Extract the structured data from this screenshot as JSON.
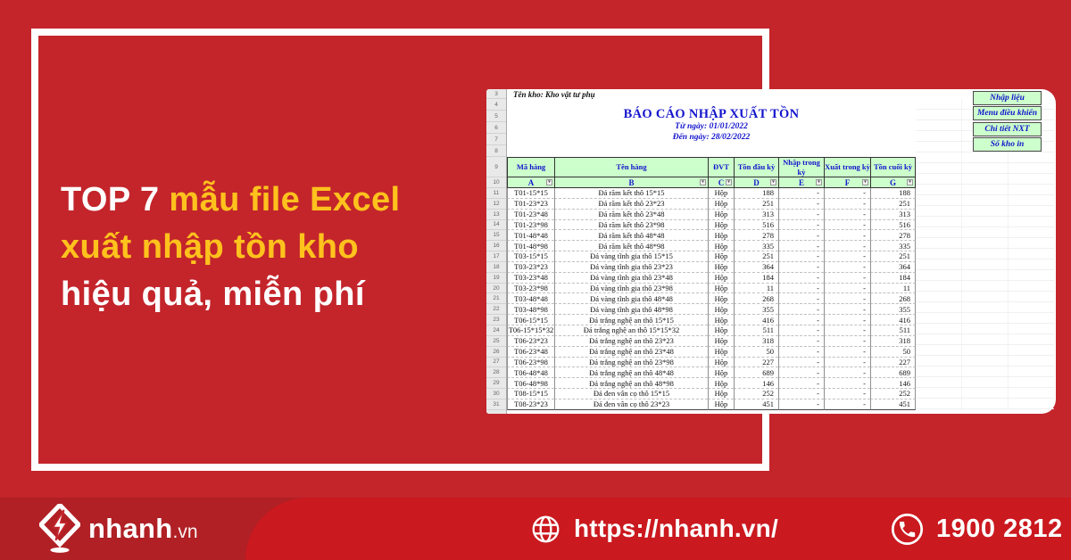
{
  "colors": {
    "brand_red": "#C3252B",
    "footer_red": "#CA191F",
    "footer_red_dark": "#B02025",
    "headline_yellow": "#FFC21D",
    "sheet_green": "#CCFFCC",
    "sheet_blue": "#1515CD"
  },
  "headline": {
    "line1_white": "TOP 7 ",
    "line1_yellow": "mẫu file Excel",
    "line2_yellow": "xuất nhập tồn kho",
    "line3_white": "hiệu quả, miễn phí"
  },
  "spreadsheet": {
    "store_label": "Tên kho: Kho vật tư phụ",
    "title": "BÁO CÁO NHẬP XUẤT TỒN",
    "date_from": "Từ ngày: 01/01/2022",
    "date_to": "Đến ngày: 28/02/2022",
    "buttons": [
      "Nhập liệu",
      "Menu điều khiển",
      "Chi tiết NXT",
      "Sổ kho in"
    ],
    "filter_icon": "▾",
    "row_numbers": [
      3,
      4,
      5,
      6,
      7,
      8,
      9,
      10,
      11,
      12,
      13,
      14,
      15,
      16,
      17,
      18,
      19,
      20,
      21,
      22,
      23,
      24,
      25,
      26,
      27,
      28,
      29,
      30,
      31
    ],
    "columns": [
      {
        "letter": "A",
        "header": "Mã hàng"
      },
      {
        "letter": "B",
        "header": "Tên hàng"
      },
      {
        "letter": "C",
        "header": "ĐVT"
      },
      {
        "letter": "D",
        "header": "Tồn đầu kỳ"
      },
      {
        "letter": "E",
        "header": "Nhập trong kỳ"
      },
      {
        "letter": "F",
        "header": "Xuất trong kỳ"
      },
      {
        "letter": "G",
        "header": "Tồn cuối kỳ"
      }
    ],
    "rows": [
      {
        "num": 11,
        "code": "T01-15*15",
        "name": "Đá răm kết thô 15*15",
        "unit": "Hộp",
        "open": "188",
        "in": "-",
        "out": "-",
        "close": "188"
      },
      {
        "num": 12,
        "code": "T01-23*23",
        "name": "Đá răm kết thô 23*23",
        "unit": "Hộp",
        "open": "251",
        "in": "-",
        "out": "-",
        "close": "251"
      },
      {
        "num": 13,
        "code": "T01-23*48",
        "name": "Đá răm kết thô 23*48",
        "unit": "Hộp",
        "open": "313",
        "in": "-",
        "out": "-",
        "close": "313"
      },
      {
        "num": 14,
        "code": "T01-23*98",
        "name": "Đá răm kết thô 23*98",
        "unit": "Hộp",
        "open": "516",
        "in": "-",
        "out": "-",
        "close": "516"
      },
      {
        "num": 15,
        "code": "T01-48*48",
        "name": "Đá răm kết thô 48*48",
        "unit": "Hộp",
        "open": "278",
        "in": "-",
        "out": "-",
        "close": "278"
      },
      {
        "num": 16,
        "code": "T01-48*98",
        "name": "Đá răm kết thô 48*98",
        "unit": "Hộp",
        "open": "335",
        "in": "-",
        "out": "-",
        "close": "335"
      },
      {
        "num": 17,
        "code": "T03-15*15",
        "name": "Đá vàng tĩnh gia thô 15*15",
        "unit": "Hộp",
        "open": "251",
        "in": "-",
        "out": "-",
        "close": "251"
      },
      {
        "num": 18,
        "code": "T03-23*23",
        "name": "Đá vàng tĩnh gia thô 23*23",
        "unit": "Hộp",
        "open": "364",
        "in": "-",
        "out": "-",
        "close": "364"
      },
      {
        "num": 19,
        "code": "T03-23*48",
        "name": "Đá vàng tĩnh gia thô 23*48",
        "unit": "Hộp",
        "open": "184",
        "in": "-",
        "out": "-",
        "close": "184"
      },
      {
        "num": 20,
        "code": "T03-23*98",
        "name": "Đá vàng tĩnh gia thô 23*98",
        "unit": "Hộp",
        "open": "11",
        "in": "-",
        "out": "-",
        "close": "11"
      },
      {
        "num": 21,
        "code": "T03-48*48",
        "name": "Đá vàng tĩnh gia thô 48*48",
        "unit": "Hộp",
        "open": "268",
        "in": "-",
        "out": "-",
        "close": "268"
      },
      {
        "num": 22,
        "code": "T03-48*98",
        "name": "Đá vàng tĩnh gia thô 48*98",
        "unit": "Hộp",
        "open": "355",
        "in": "-",
        "out": "-",
        "close": "355"
      },
      {
        "num": 23,
        "code": "T06-15*15",
        "name": "Đá trắng nghệ an thô 15*15",
        "unit": "Hộp",
        "open": "416",
        "in": "-",
        "out": "-",
        "close": "416"
      },
      {
        "num": 24,
        "code": "T06-15*15*32",
        "name": "Đá trắng nghệ an thô 15*15*32",
        "unit": "Hộp",
        "open": "511",
        "in": "-",
        "out": "-",
        "close": "511"
      },
      {
        "num": 25,
        "code": "T06-23*23",
        "name": "Đá trắng nghệ an thô 23*23",
        "unit": "Hộp",
        "open": "318",
        "in": "-",
        "out": "-",
        "close": "318"
      },
      {
        "num": 26,
        "code": "T06-23*48",
        "name": "Đá trắng nghệ an thô 23*48",
        "unit": "Hộp",
        "open": "50",
        "in": "-",
        "out": "-",
        "close": "50"
      },
      {
        "num": 27,
        "code": "T06-23*98",
        "name": "Đá trắng nghệ an thô 23*98",
        "unit": "Hộp",
        "open": "227",
        "in": "-",
        "out": "-",
        "close": "227"
      },
      {
        "num": 28,
        "code": "T06-48*48",
        "name": "Đá trắng nghệ an thô 48*48",
        "unit": "Hộp",
        "open": "689",
        "in": "-",
        "out": "-",
        "close": "689"
      },
      {
        "num": 29,
        "code": "T06-48*98",
        "name": "Đá trắng nghệ an thô 48*98",
        "unit": "Hộp",
        "open": "146",
        "in": "-",
        "out": "-",
        "close": "146"
      },
      {
        "num": 30,
        "code": "T08-15*15",
        "name": "Đá đen vân cọ thô 15*15",
        "unit": "Hộp",
        "open": "252",
        "in": "-",
        "out": "-",
        "close": "252"
      },
      {
        "num": 31,
        "code": "T08-23*23",
        "name": "Đá đen vân cọ thô 23*23",
        "unit": "Hộp",
        "open": "451",
        "in": "-",
        "out": "-",
        "close": "451"
      }
    ]
  },
  "footer": {
    "logo_text": "nhanh",
    "logo_suffix": ".vn",
    "url": "https://nhanh.vn/",
    "phone": "1900 2812"
  }
}
